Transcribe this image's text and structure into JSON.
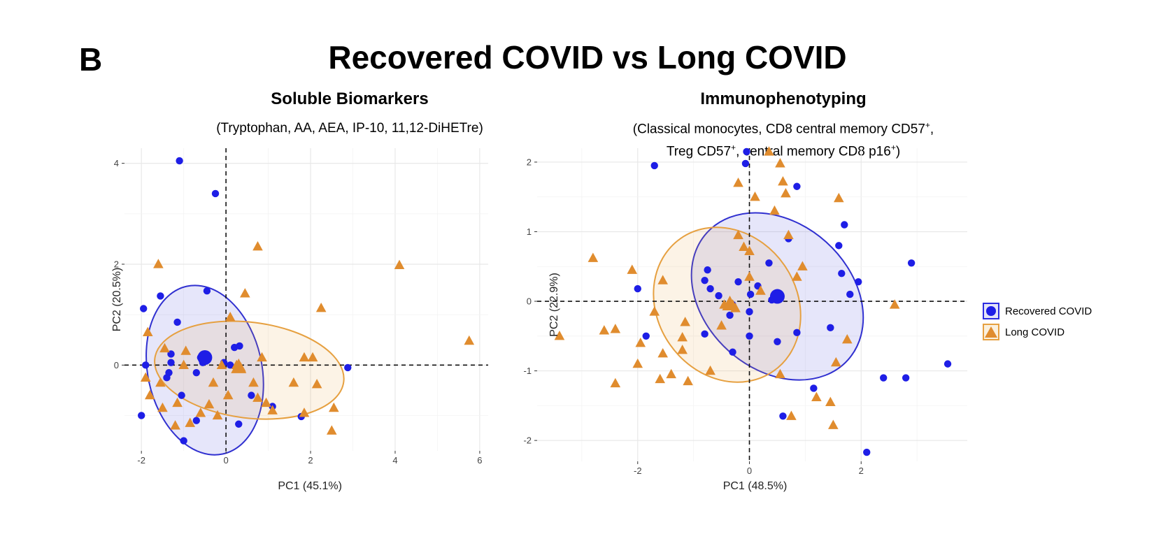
{
  "figure": {
    "panel_letter": "B",
    "title": "Recovered COVID vs Long COVID"
  },
  "legend": {
    "items": [
      {
        "label": "Recovered COVID",
        "color": "#1e1ee6",
        "shape": "circle"
      },
      {
        "label": "Long COVID",
        "color": "#e08c2e",
        "shape": "triangle"
      }
    ]
  },
  "colors": {
    "recovered": "#1e1ee6",
    "long": "#e08c2e",
    "recovered_ellipse": "#3030d0",
    "long_ellipse": "#e6a040"
  },
  "chart_data": [
    {
      "type": "scatter",
      "title": "Soluble Biomarkers",
      "subtitle": "(Tryptophan, AA, AEA, IP-10, 11,12-DiHETre)",
      "xlabel": "PC1 (45.1%)",
      "ylabel": "PC2 (20.5%)",
      "xlim": [
        -2.4,
        6.2
      ],
      "ylim": [
        -1.7,
        4.3
      ],
      "xticks": [
        -2,
        0,
        2,
        4,
        6
      ],
      "yticks": [
        0,
        2,
        4
      ],
      "grid": true,
      "reference_lines": {
        "x": 0,
        "y": 0,
        "style": "dashed"
      },
      "series": [
        {
          "name": "Recovered COVID",
          "marker": "circle",
          "centroid": {
            "x": -0.5,
            "y": 0.15
          },
          "ellipse": {
            "cx": -0.5,
            "cy": -0.1,
            "rx": 1.35,
            "ry": 1.7,
            "rotation_deg": -12
          },
          "points": [
            {
              "x": -1.1,
              "y": 4.05
            },
            {
              "x": -0.25,
              "y": 3.4
            },
            {
              "x": -1.95,
              "y": 1.12
            },
            {
              "x": -1.55,
              "y": 1.37
            },
            {
              "x": -0.45,
              "y": 1.47
            },
            {
              "x": -1.15,
              "y": 0.85
            },
            {
              "x": 0.2,
              "y": 0.35
            },
            {
              "x": 0.32,
              "y": 0.38
            },
            {
              "x": -1.3,
              "y": 0.22
            },
            {
              "x": -1.3,
              "y": 0.05
            },
            {
              "x": -0.6,
              "y": 0.15
            },
            {
              "x": -0.5,
              "y": 0.1
            },
            {
              "x": -0.55,
              "y": 0.05
            },
            {
              "x": -0.05,
              "y": 0.05
            },
            {
              "x": 0.1,
              "y": 0.0
            },
            {
              "x": -1.9,
              "y": 0.0
            },
            {
              "x": -0.7,
              "y": -0.15
            },
            {
              "x": -1.4,
              "y": -0.25
            },
            {
              "x": -1.35,
              "y": -0.15
            },
            {
              "x": -1.05,
              "y": -0.6
            },
            {
              "x": 0.6,
              "y": -0.6
            },
            {
              "x": 1.1,
              "y": -0.82
            },
            {
              "x": -0.7,
              "y": -1.1
            },
            {
              "x": 0.3,
              "y": -1.17
            },
            {
              "x": -2.0,
              "y": -1.0
            },
            {
              "x": -1.0,
              "y": -1.5
            },
            {
              "x": 1.78,
              "y": -1.02
            },
            {
              "x": 2.88,
              "y": -0.05
            }
          ]
        },
        {
          "name": "Long COVID",
          "marker": "triangle",
          "centroid": {
            "x": 0.3,
            "y": -0.05
          },
          "ellipse": {
            "cx": 0.55,
            "cy": -0.1,
            "rx": 2.25,
            "ry": 0.95,
            "rotation_deg": 7
          },
          "points": [
            {
              "x": 0.75,
              "y": 2.35
            },
            {
              "x": 4.1,
              "y": 1.98
            },
            {
              "x": -1.6,
              "y": 2.0
            },
            {
              "x": 0.45,
              "y": 1.42
            },
            {
              "x": 2.25,
              "y": 1.13
            },
            {
              "x": 0.1,
              "y": 0.95
            },
            {
              "x": 5.75,
              "y": 0.48
            },
            {
              "x": -1.85,
              "y": 0.65
            },
            {
              "x": -1.45,
              "y": 0.33
            },
            {
              "x": -0.95,
              "y": 0.28
            },
            {
              "x": 1.85,
              "y": 0.15
            },
            {
              "x": 2.05,
              "y": 0.15
            },
            {
              "x": -1.0,
              "y": 0.0
            },
            {
              "x": -0.1,
              "y": 0.0
            },
            {
              "x": 0.25,
              "y": 0.0
            },
            {
              "x": 0.35,
              "y": -0.05
            },
            {
              "x": 0.85,
              "y": 0.15
            },
            {
              "x": -1.9,
              "y": -0.25
            },
            {
              "x": -1.55,
              "y": -0.35
            },
            {
              "x": -0.3,
              "y": -0.35
            },
            {
              "x": 0.65,
              "y": -0.35
            },
            {
              "x": 2.15,
              "y": -0.38
            },
            {
              "x": 1.6,
              "y": -0.35
            },
            {
              "x": -1.8,
              "y": -0.6
            },
            {
              "x": -1.15,
              "y": -0.75
            },
            {
              "x": 0.05,
              "y": -0.6
            },
            {
              "x": 0.75,
              "y": -0.65
            },
            {
              "x": 0.95,
              "y": -0.75
            },
            {
              "x": -1.5,
              "y": -0.85
            },
            {
              "x": -0.4,
              "y": -0.78
            },
            {
              "x": -0.6,
              "y": -0.95
            },
            {
              "x": 1.1,
              "y": -0.9
            },
            {
              "x": 1.85,
              "y": -0.95
            },
            {
              "x": 2.55,
              "y": -0.85
            },
            {
              "x": -0.85,
              "y": -1.15
            },
            {
              "x": -1.2,
              "y": -1.2
            },
            {
              "x": -0.2,
              "y": -1.0
            },
            {
              "x": 2.5,
              "y": -1.3
            }
          ]
        }
      ]
    },
    {
      "type": "scatter",
      "title": "Immunophenotyping",
      "subtitle_lines": [
        [
          "Classical monocytes, CD8 central memory CD57",
          "+",
          ","
        ],
        [
          "Treg CD57",
          "+",
          ", central memory CD8 p16",
          "+",
          ")"
        ]
      ],
      "subtitle_open_paren": "(",
      "xlabel": "PC1 (48.5%)",
      "ylabel": "PC2 (22.9%)",
      "xlim": [
        -3.8,
        3.9
      ],
      "ylim": [
        -2.3,
        2.2
      ],
      "xticks": [
        -2,
        0,
        2
      ],
      "yticks": [
        -2,
        -1,
        0,
        1,
        2
      ],
      "grid": true,
      "reference_lines": {
        "x": 0,
        "y": 0,
        "style": "dashed"
      },
      "series": [
        {
          "name": "Recovered COVID",
          "marker": "circle",
          "centroid": {
            "x": 0.5,
            "y": 0.07
          },
          "ellipse": {
            "cx": 0.5,
            "cy": 0.07,
            "rx": 1.7,
            "ry": 1.05,
            "rotation_deg": 42
          },
          "points": [
            {
              "x": -0.05,
              "y": 2.15
            },
            {
              "x": -0.07,
              "y": 1.98
            },
            {
              "x": -1.7,
              "y": 1.95
            },
            {
              "x": 0.85,
              "y": 1.65
            },
            {
              "x": 1.7,
              "y": 1.1
            },
            {
              "x": 0.7,
              "y": 0.9
            },
            {
              "x": 1.6,
              "y": 0.8
            },
            {
              "x": -0.75,
              "y": 0.45
            },
            {
              "x": -0.8,
              "y": 0.3
            },
            {
              "x": 0.35,
              "y": 0.55
            },
            {
              "x": 1.65,
              "y": 0.4
            },
            {
              "x": 2.9,
              "y": 0.55
            },
            {
              "x": -0.2,
              "y": 0.28
            },
            {
              "x": 0.15,
              "y": 0.22
            },
            {
              "x": 1.95,
              "y": 0.28
            },
            {
              "x": -2.0,
              "y": 0.18
            },
            {
              "x": -0.7,
              "y": 0.18
            },
            {
              "x": -0.55,
              "y": 0.08
            },
            {
              "x": 0.02,
              "y": 0.1
            },
            {
              "x": 1.8,
              "y": 0.1
            },
            {
              "x": 0.4,
              "y": 0.02
            },
            {
              "x": -0.3,
              "y": -0.05
            },
            {
              "x": -0.35,
              "y": -0.2
            },
            {
              "x": 0.0,
              "y": -0.15
            },
            {
              "x": 1.45,
              "y": -0.38
            },
            {
              "x": -0.8,
              "y": -0.47
            },
            {
              "x": 0.0,
              "y": -0.5
            },
            {
              "x": 0.85,
              "y": -0.45
            },
            {
              "x": -1.85,
              "y": -0.5
            },
            {
              "x": 0.5,
              "y": -0.58
            },
            {
              "x": -0.3,
              "y": -0.73
            },
            {
              "x": 3.55,
              "y": -0.9
            },
            {
              "x": 2.4,
              "y": -1.1
            },
            {
              "x": 2.8,
              "y": -1.1
            },
            {
              "x": 1.15,
              "y": -1.25
            },
            {
              "x": 0.6,
              "y": -1.65
            },
            {
              "x": 2.1,
              "y": -2.17
            }
          ]
        },
        {
          "name": "Long COVID",
          "marker": "triangle",
          "centroid": {
            "x": -0.35,
            "y": -0.05
          },
          "ellipse": {
            "cx": -0.4,
            "cy": -0.05,
            "rx": 1.45,
            "ry": 1.0,
            "rotation_deg": 55
          },
          "points": [
            {
              "x": 0.35,
              "y": 2.15
            },
            {
              "x": 0.55,
              "y": 1.98
            },
            {
              "x": 0.6,
              "y": 1.72
            },
            {
              "x": -0.2,
              "y": 1.7
            },
            {
              "x": 0.65,
              "y": 1.55
            },
            {
              "x": 0.1,
              "y": 1.5
            },
            {
              "x": 1.6,
              "y": 1.48
            },
            {
              "x": 0.45,
              "y": 1.3
            },
            {
              "x": -2.8,
              "y": 0.62
            },
            {
              "x": -0.2,
              "y": 0.95
            },
            {
              "x": 0.7,
              "y": 0.95
            },
            {
              "x": -0.1,
              "y": 0.78
            },
            {
              "x": 0.0,
              "y": 0.72
            },
            {
              "x": 0.95,
              "y": 0.5
            },
            {
              "x": -2.1,
              "y": 0.45
            },
            {
              "x": -1.55,
              "y": 0.3
            },
            {
              "x": 0.0,
              "y": 0.35
            },
            {
              "x": 0.85,
              "y": 0.35
            },
            {
              "x": 0.2,
              "y": 0.15
            },
            {
              "x": -0.45,
              "y": -0.05
            },
            {
              "x": -0.35,
              "y": 0.0
            },
            {
              "x": -0.3,
              "y": -0.05
            },
            {
              "x": -0.25,
              "y": -0.1
            },
            {
              "x": 2.6,
              "y": -0.05
            },
            {
              "x": -1.7,
              "y": -0.15
            },
            {
              "x": -0.5,
              "y": -0.35
            },
            {
              "x": -1.15,
              "y": -0.3
            },
            {
              "x": 1.75,
              "y": -0.55
            },
            {
              "x": -3.4,
              "y": -0.5
            },
            {
              "x": -2.6,
              "y": -0.42
            },
            {
              "x": -2.4,
              "y": -0.4
            },
            {
              "x": -1.95,
              "y": -0.6
            },
            {
              "x": -1.2,
              "y": -0.52
            },
            {
              "x": -1.55,
              "y": -0.75
            },
            {
              "x": -1.2,
              "y": -0.7
            },
            {
              "x": -2.0,
              "y": -0.9
            },
            {
              "x": -1.6,
              "y": -1.12
            },
            {
              "x": -1.4,
              "y": -1.05
            },
            {
              "x": -0.7,
              "y": -1.0
            },
            {
              "x": 0.55,
              "y": -1.05
            },
            {
              "x": -2.4,
              "y": -1.18
            },
            {
              "x": -1.1,
              "y": -1.15
            },
            {
              "x": 1.2,
              "y": -1.38
            },
            {
              "x": 1.45,
              "y": -1.45
            },
            {
              "x": 0.75,
              "y": -1.65
            },
            {
              "x": 1.5,
              "y": -1.78
            },
            {
              "x": 1.55,
              "y": -0.88
            }
          ]
        }
      ]
    }
  ]
}
